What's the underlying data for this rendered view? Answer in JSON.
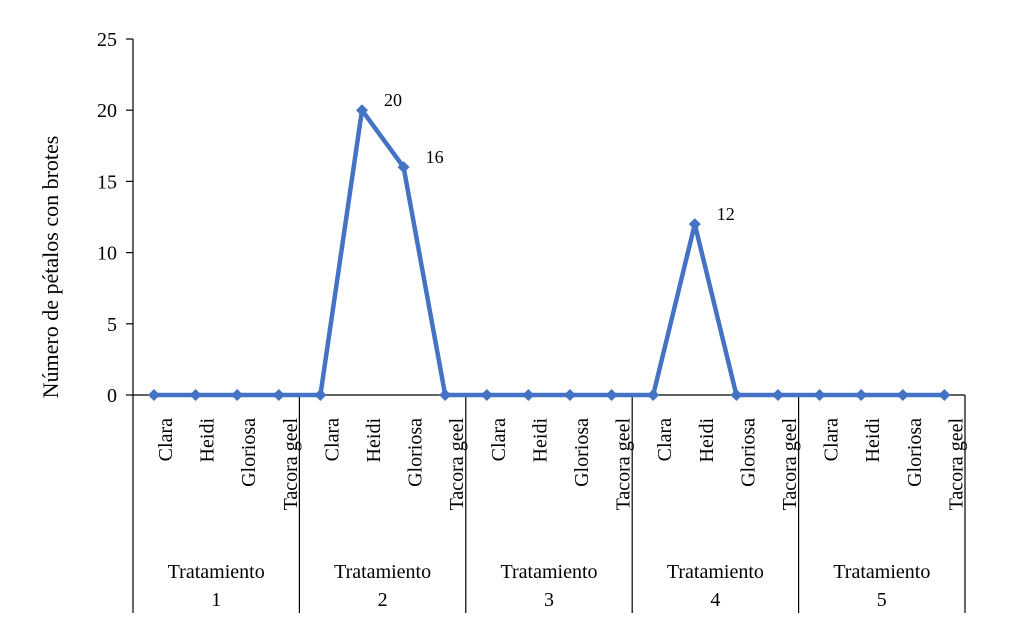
{
  "chart_data": {
    "type": "line",
    "ylabel": "Número de pétalos con brotes",
    "ylim": [
      0,
      25
    ],
    "yticks": [
      0,
      5,
      10,
      15,
      20,
      25
    ],
    "grid": false,
    "groups": [
      {
        "label_line1": "Tratamiento",
        "label_line2": "1",
        "categories": [
          "Clara",
          "Heidi",
          "Gloriosa",
          "Tacora geel"
        ]
      },
      {
        "label_line1": "Tratamiento",
        "label_line2": "2",
        "categories": [
          "Clara",
          "Heidi",
          "Gloriosa",
          "Tacora geel"
        ]
      },
      {
        "label_line1": "Tratamiento",
        "label_line2": "3",
        "categories": [
          "Clara",
          "Heidi",
          "Gloriosa",
          "Tacora geel"
        ]
      },
      {
        "label_line1": "Tratamiento",
        "label_line2": "4",
        "categories": [
          "Clara",
          "Heidi",
          "Gloriosa",
          "Tacora geel"
        ]
      },
      {
        "label_line1": "Tratamiento",
        "label_line2": "5",
        "categories": [
          "Clara",
          "Heidi",
          "Gloriosa",
          "Tacora geel"
        ]
      }
    ],
    "series": [
      {
        "color": "#4472C4",
        "values": [
          0,
          0,
          0,
          0,
          0,
          20,
          16,
          0,
          0,
          0,
          0,
          0,
          0,
          12,
          0,
          0,
          0,
          0,
          0,
          0
        ],
        "data_labels": [
          "",
          "",
          "",
          "",
          "",
          "20",
          "16",
          "",
          "",
          "",
          "",
          "",
          "",
          "12",
          "",
          "",
          "",
          "",
          "",
          ""
        ]
      }
    ]
  }
}
